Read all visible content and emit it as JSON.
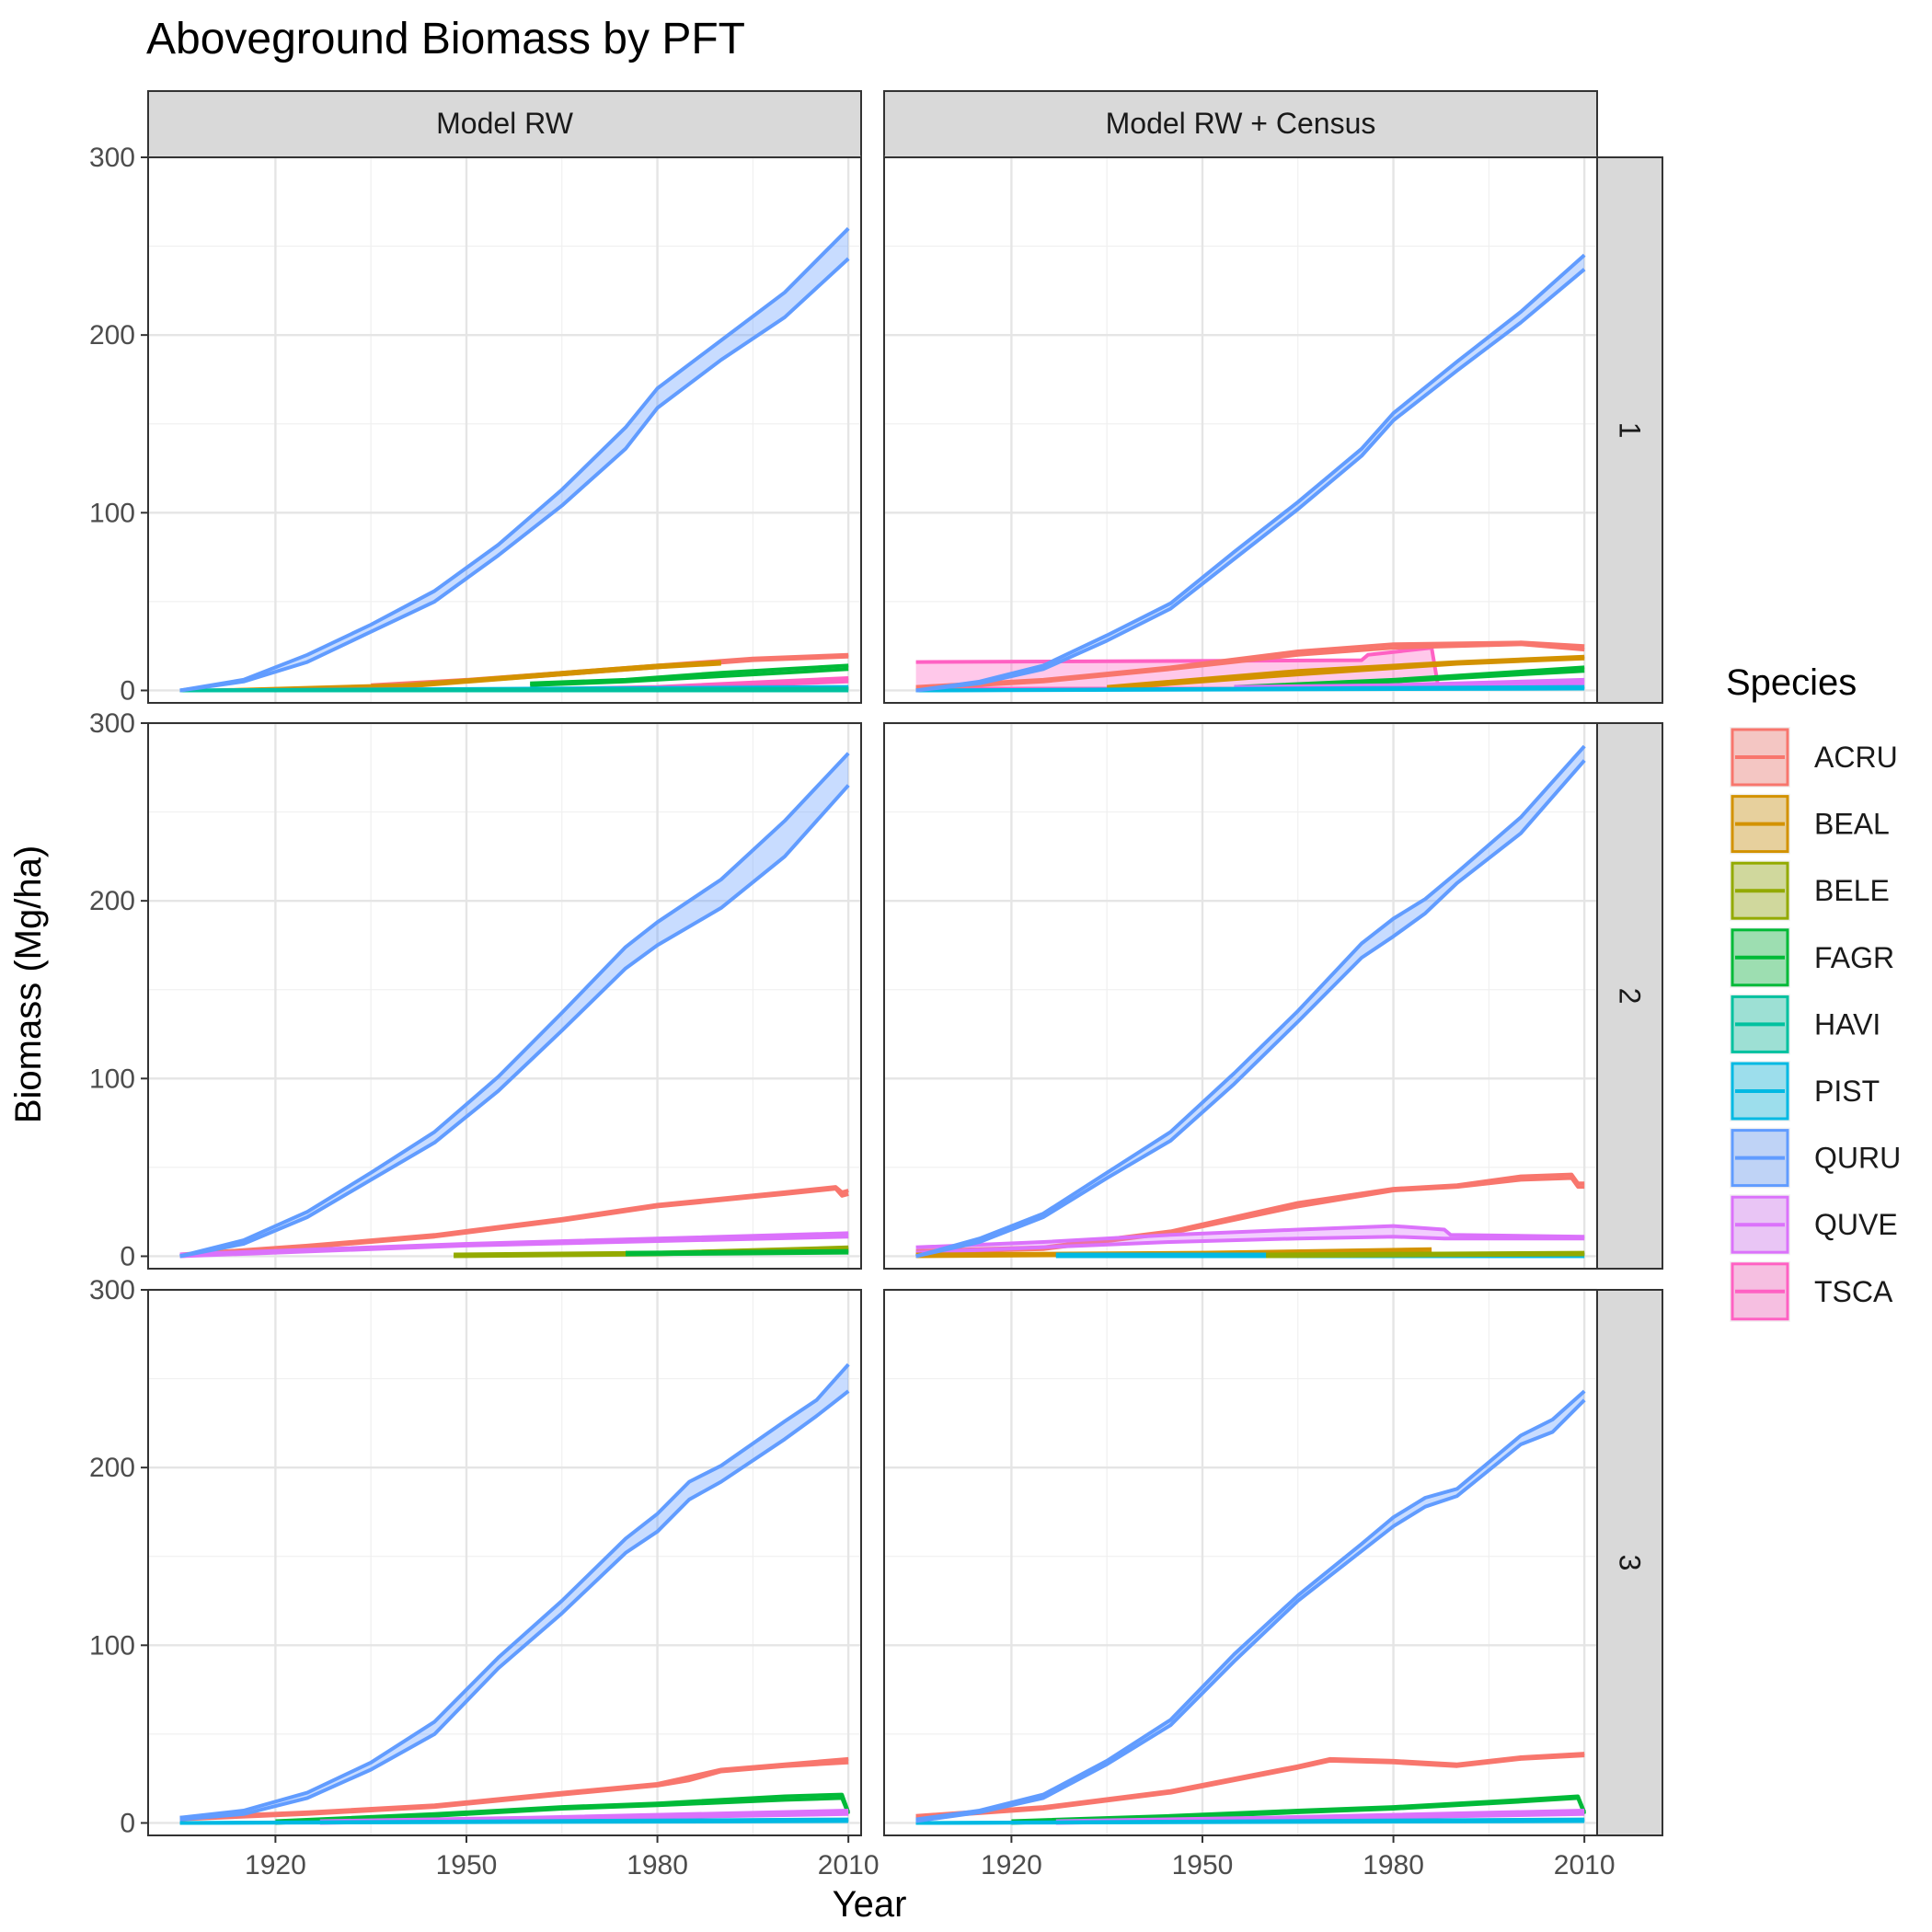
{
  "chart_data": {
    "type": "line",
    "title": "Aboveground Biomass by PFT",
    "xlabel": "Year",
    "ylabel": "Biomass (Mg/ha)",
    "xlim": [
      1900,
      2012
    ],
    "ylim": [
      -7,
      300
    ],
    "x_ticks": [
      1920,
      1950,
      1980,
      2010
    ],
    "x_tick_labels": [
      "1920",
      "1950",
      "1980",
      "2010"
    ],
    "y_ticks": [
      0,
      100,
      200,
      300
    ],
    "y_tick_labels": [
      "0",
      "100",
      "200",
      "300"
    ],
    "column_strips": [
      "Model RW",
      "Model RW + Census"
    ],
    "row_strips": [
      "1",
      "2",
      "3"
    ],
    "legend": {
      "title": "Species",
      "position": "right",
      "items": [
        {
          "label": "ACRU",
          "color": "#F8766D"
        },
        {
          "label": "BEAL",
          "color": "#D39200"
        },
        {
          "label": "BELE",
          "color": "#93AA00"
        },
        {
          "label": "FAGR",
          "color": "#00BA38"
        },
        {
          "label": "HAVI",
          "color": "#00C19F"
        },
        {
          "label": "PIST",
          "color": "#00B9E3"
        },
        {
          "label": "QURU",
          "color": "#619CFF"
        },
        {
          "label": "QUVE",
          "color": "#DB72FB"
        },
        {
          "label": "TSCA",
          "color": "#FF61C3"
        }
      ]
    },
    "panels": [
      {
        "row": "1",
        "column": "Model RW",
        "series": [
          {
            "name": "QURU",
            "x": [
              1905,
              1915,
              1925,
              1935,
              1945,
              1955,
              1965,
              1975,
              1980,
              1990,
              2000,
              2010
            ],
            "lower": [
              0,
              5,
              16,
              33,
              50,
              76,
              104,
              136,
              159,
              186,
              210,
              243
            ],
            "upper": [
              0,
              6,
              20,
              37,
              56,
              82,
              113,
              148,
              170,
              197,
              224,
              260
            ]
          },
          {
            "name": "ACRU",
            "x": [
              1935,
              1950,
              1965,
              1980,
              1995,
              2010
            ],
            "lower": [
              2,
              5,
              9,
              13,
              17,
              19
            ],
            "upper": [
              3,
              6,
              10,
              14,
              18,
              20
            ]
          },
          {
            "name": "BEAL",
            "x": [
              1910,
              1940,
              1965,
              1980,
              1990
            ],
            "lower": [
              0,
              2,
              9,
              13,
              15
            ],
            "upper": [
              0,
              3,
              10,
              14,
              16
            ]
          },
          {
            "name": "FAGR",
            "x": [
              1960,
              1975,
              1990,
              2000,
              2010
            ],
            "lower": [
              3,
              5,
              8,
              10,
              12
            ],
            "upper": [
              4,
              6,
              10,
              12,
              14
            ]
          },
          {
            "name": "TSCA",
            "x": [
              1950,
              1980,
              2010
            ],
            "lower": [
              0,
              1,
              5
            ],
            "upper": [
              0,
              2,
              7
            ]
          },
          {
            "name": "PIST",
            "x": [
              1905,
              2010
            ],
            "lower": [
              0,
              1
            ],
            "upper": [
              0,
              2
            ]
          },
          {
            "name": "HAVI",
            "x": [
              1905,
              2010
            ],
            "lower": [
              0,
              0
            ],
            "upper": [
              0,
              1
            ]
          }
        ]
      },
      {
        "row": "1",
        "column": "Model RW + Census",
        "series": [
          {
            "name": "QURU",
            "x": [
              1905,
              1915,
              1925,
              1935,
              1945,
              1955,
              1965,
              1975,
              1980,
              1990,
              2000,
              2010
            ],
            "lower": [
              0,
              4,
              12,
              28,
              46,
              74,
              102,
              132,
              152,
              180,
              207,
              237
            ],
            "upper": [
              0,
              5,
              14,
              31,
              49,
              78,
              106,
              136,
              156,
              185,
              213,
              245
            ]
          },
          {
            "name": "TSCA",
            "x": [
              1905,
              1975,
              1976,
              1986,
              1987
            ],
            "lower": [
              1,
              1,
              1,
              1,
              1
            ],
            "upper": [
              16,
              17,
              20,
              24,
              3
            ]
          },
          {
            "name": "ACRU",
            "x": [
              1905,
              1925,
              1945,
              1965,
              1980,
              2000,
              2010
            ],
            "lower": [
              1,
              5,
              12,
              20,
              24,
              26,
              23
            ],
            "upper": [
              2,
              6,
              13,
              22,
              26,
              27,
              25
            ]
          },
          {
            "name": "BEAL",
            "x": [
              1935,
              1965,
              1990,
              2010
            ],
            "lower": [
              1,
              9,
              15,
              18
            ],
            "upper": [
              2,
              11,
              16,
              19
            ]
          },
          {
            "name": "FAGR",
            "x": [
              1955,
              1980,
              2010
            ],
            "lower": [
              1,
              5,
              11
            ],
            "upper": [
              2,
              6,
              13
            ]
          },
          {
            "name": "QUVE",
            "x": [
              1955,
              1980,
              2010
            ],
            "lower": [
              1,
              2,
              4
            ],
            "upper": [
              2,
              3,
              6
            ]
          },
          {
            "name": "PIST",
            "x": [
              1905,
              2010
            ],
            "lower": [
              0,
              1
            ],
            "upper": [
              0,
              2
            ]
          }
        ]
      },
      {
        "row": "2",
        "column": "Model RW",
        "series": [
          {
            "name": "QURU",
            "x": [
              1905,
              1915,
              1925,
              1935,
              1945,
              1955,
              1965,
              1975,
              1980,
              1990,
              2000,
              2010
            ],
            "lower": [
              0,
              7,
              22,
              43,
              64,
              93,
              127,
              162,
              175,
              196,
              225,
              265
            ],
            "upper": [
              0,
              9,
              25,
              47,
              70,
              101,
              137,
              174,
              188,
              212,
              245,
              283
            ]
          },
          {
            "name": "ACRU",
            "x": [
              1905,
              1925,
              1945,
              1965,
              1980,
              2000,
              2008,
              2009,
              2010
            ],
            "lower": [
              0,
              5,
              11,
              20,
              28,
              35,
              38,
              34,
              35
            ],
            "upper": [
              1,
              6,
              12,
              21,
              29,
              36,
              39,
              36,
              37
            ]
          },
          {
            "name": "QUVE",
            "x": [
              1905,
              1950,
              2010
            ],
            "lower": [
              0,
              6,
              11
            ],
            "upper": [
              1,
              7,
              13
            ]
          },
          {
            "name": "BELE",
            "x": [
              1948,
              1980,
              2010
            ],
            "lower": [
              0,
              1,
              4
            ],
            "upper": [
              1,
              2,
              5
            ]
          },
          {
            "name": "FAGR",
            "x": [
              1975,
              2010
            ],
            "lower": [
              1,
              2
            ],
            "upper": [
              2,
              3
            ]
          }
        ]
      },
      {
        "row": "2",
        "column": "Model RW + Census",
        "series": [
          {
            "name": "QURU",
            "x": [
              1905,
              1915,
              1925,
              1935,
              1945,
              1955,
              1965,
              1975,
              1980,
              1985,
              1990,
              2000,
              2010
            ],
            "lower": [
              0,
              8,
              22,
              44,
              65,
              97,
              132,
              168,
              180,
              193,
              210,
              238,
              279
            ],
            "upper": [
              0,
              10,
              24,
              47,
              70,
              103,
              138,
              176,
              190,
              201,
              216,
              247,
              287
            ]
          },
          {
            "name": "ACRU",
            "x": [
              1905,
              1925,
              1945,
              1965,
              1980,
              1990,
              2000,
              2008,
              2009,
              2010
            ],
            "lower": [
              2,
              4,
              13,
              28,
              37,
              39,
              43,
              44,
              39,
              39
            ],
            "upper": [
              3,
              5,
              14,
              30,
              38,
              40,
              45,
              46,
              41,
              41
            ]
          },
          {
            "name": "QUVE",
            "x": [
              1905,
              1925,
              1945,
              1965,
              1980,
              1988,
              1989,
              2010
            ],
            "lower": [
              2,
              5,
              8,
              10,
              11,
              10,
              10,
              10
            ],
            "upper": [
              5,
              8,
              12,
              15,
              17,
              15,
              12,
              11
            ]
          },
          {
            "name": "BEAL",
            "x": [
              1905,
              1950,
              1986
            ],
            "lower": [
              0,
              1,
              2
            ],
            "upper": [
              1,
              2,
              4
            ]
          },
          {
            "name": "PIST",
            "x": [
              1927,
              2010
            ],
            "lower": [
              0,
              0
            ],
            "upper": [
              1,
              1
            ]
          },
          {
            "name": "BELE",
            "x": [
              1960,
              2010
            ],
            "lower": [
              0,
              1
            ],
            "upper": [
              1,
              2
            ]
          }
        ]
      },
      {
        "row": "3",
        "column": "Model RW",
        "series": [
          {
            "name": "QURU",
            "x": [
              1905,
              1915,
              1925,
              1935,
              1945,
              1955,
              1965,
              1975,
              1980,
              1985,
              1990,
              2000,
              2005,
              2010
            ],
            "lower": [
              2,
              5,
              14,
              30,
              50,
              87,
              118,
              152,
              164,
              182,
              192,
              216,
              229,
              243
            ],
            "upper": [
              3,
              7,
              17,
              34,
              57,
              93,
              125,
              160,
              174,
              192,
              201,
              226,
              238,
              258
            ]
          },
          {
            "name": "ACRU",
            "x": [
              1905,
              1925,
              1945,
              1965,
              1980,
              1985,
              1990,
              2000,
              2010
            ],
            "lower": [
              2,
              5,
              9,
              16,
              21,
              24,
              29,
              32,
              34
            ],
            "upper": [
              3,
              6,
              10,
              17,
              22,
              26,
              30,
              33,
              36
            ]
          },
          {
            "name": "FAGR",
            "x": [
              1920,
              1945,
              1965,
              1980,
              2000,
              2009,
              2010
            ],
            "lower": [
              0,
              4,
              8,
              10,
              13,
              14,
              5
            ],
            "upper": [
              1,
              5,
              9,
              11,
              15,
              16,
              6
            ]
          },
          {
            "name": "QUVE",
            "x": [
              1927,
              1960,
              2010
            ],
            "lower": [
              0,
              2,
              5
            ],
            "upper": [
              1,
              3,
              7
            ]
          },
          {
            "name": "PIST",
            "x": [
              1905,
              2010
            ],
            "lower": [
              0,
              1
            ],
            "upper": [
              0,
              2
            ]
          }
        ]
      },
      {
        "row": "3",
        "column": "Model RW + Census",
        "series": [
          {
            "name": "QURU",
            "x": [
              1905,
              1915,
              1925,
              1935,
              1945,
              1955,
              1965,
              1975,
              1980,
              1985,
              1990,
              2000,
              2005,
              2010
            ],
            "lower": [
              1,
              6,
              14,
              33,
              55,
              91,
              125,
              153,
              167,
              178,
              184,
              213,
              220,
              238
            ],
            "upper": [
              2,
              7,
              16,
              35,
              58,
              95,
              128,
              157,
              172,
              183,
              188,
              218,
              227,
              243
            ]
          },
          {
            "name": "ACRU",
            "x": [
              1905,
              1925,
              1945,
              1965,
              1970,
              1980,
              1990,
              2000,
              2010
            ],
            "lower": [
              3,
              8,
              17,
              31,
              35,
              34,
              32,
              36,
              38
            ],
            "upper": [
              4,
              9,
              18,
              32,
              36,
              35,
              33,
              37,
              39
            ]
          },
          {
            "name": "FAGR",
            "x": [
              1920,
              1945,
              1965,
              1980,
              2000,
              2009,
              2010
            ],
            "lower": [
              0,
              3,
              6,
              8,
              12,
              14,
              5
            ],
            "upper": [
              1,
              4,
              7,
              9,
              13,
              15,
              6
            ]
          },
          {
            "name": "QUVE",
            "x": [
              1927,
              1960,
              2010
            ],
            "lower": [
              0,
              2,
              5
            ],
            "upper": [
              1,
              3,
              7
            ]
          },
          {
            "name": "PIST",
            "x": [
              1905,
              2010
            ],
            "lower": [
              0,
              1
            ],
            "upper": [
              0,
              2
            ]
          }
        ]
      }
    ]
  }
}
